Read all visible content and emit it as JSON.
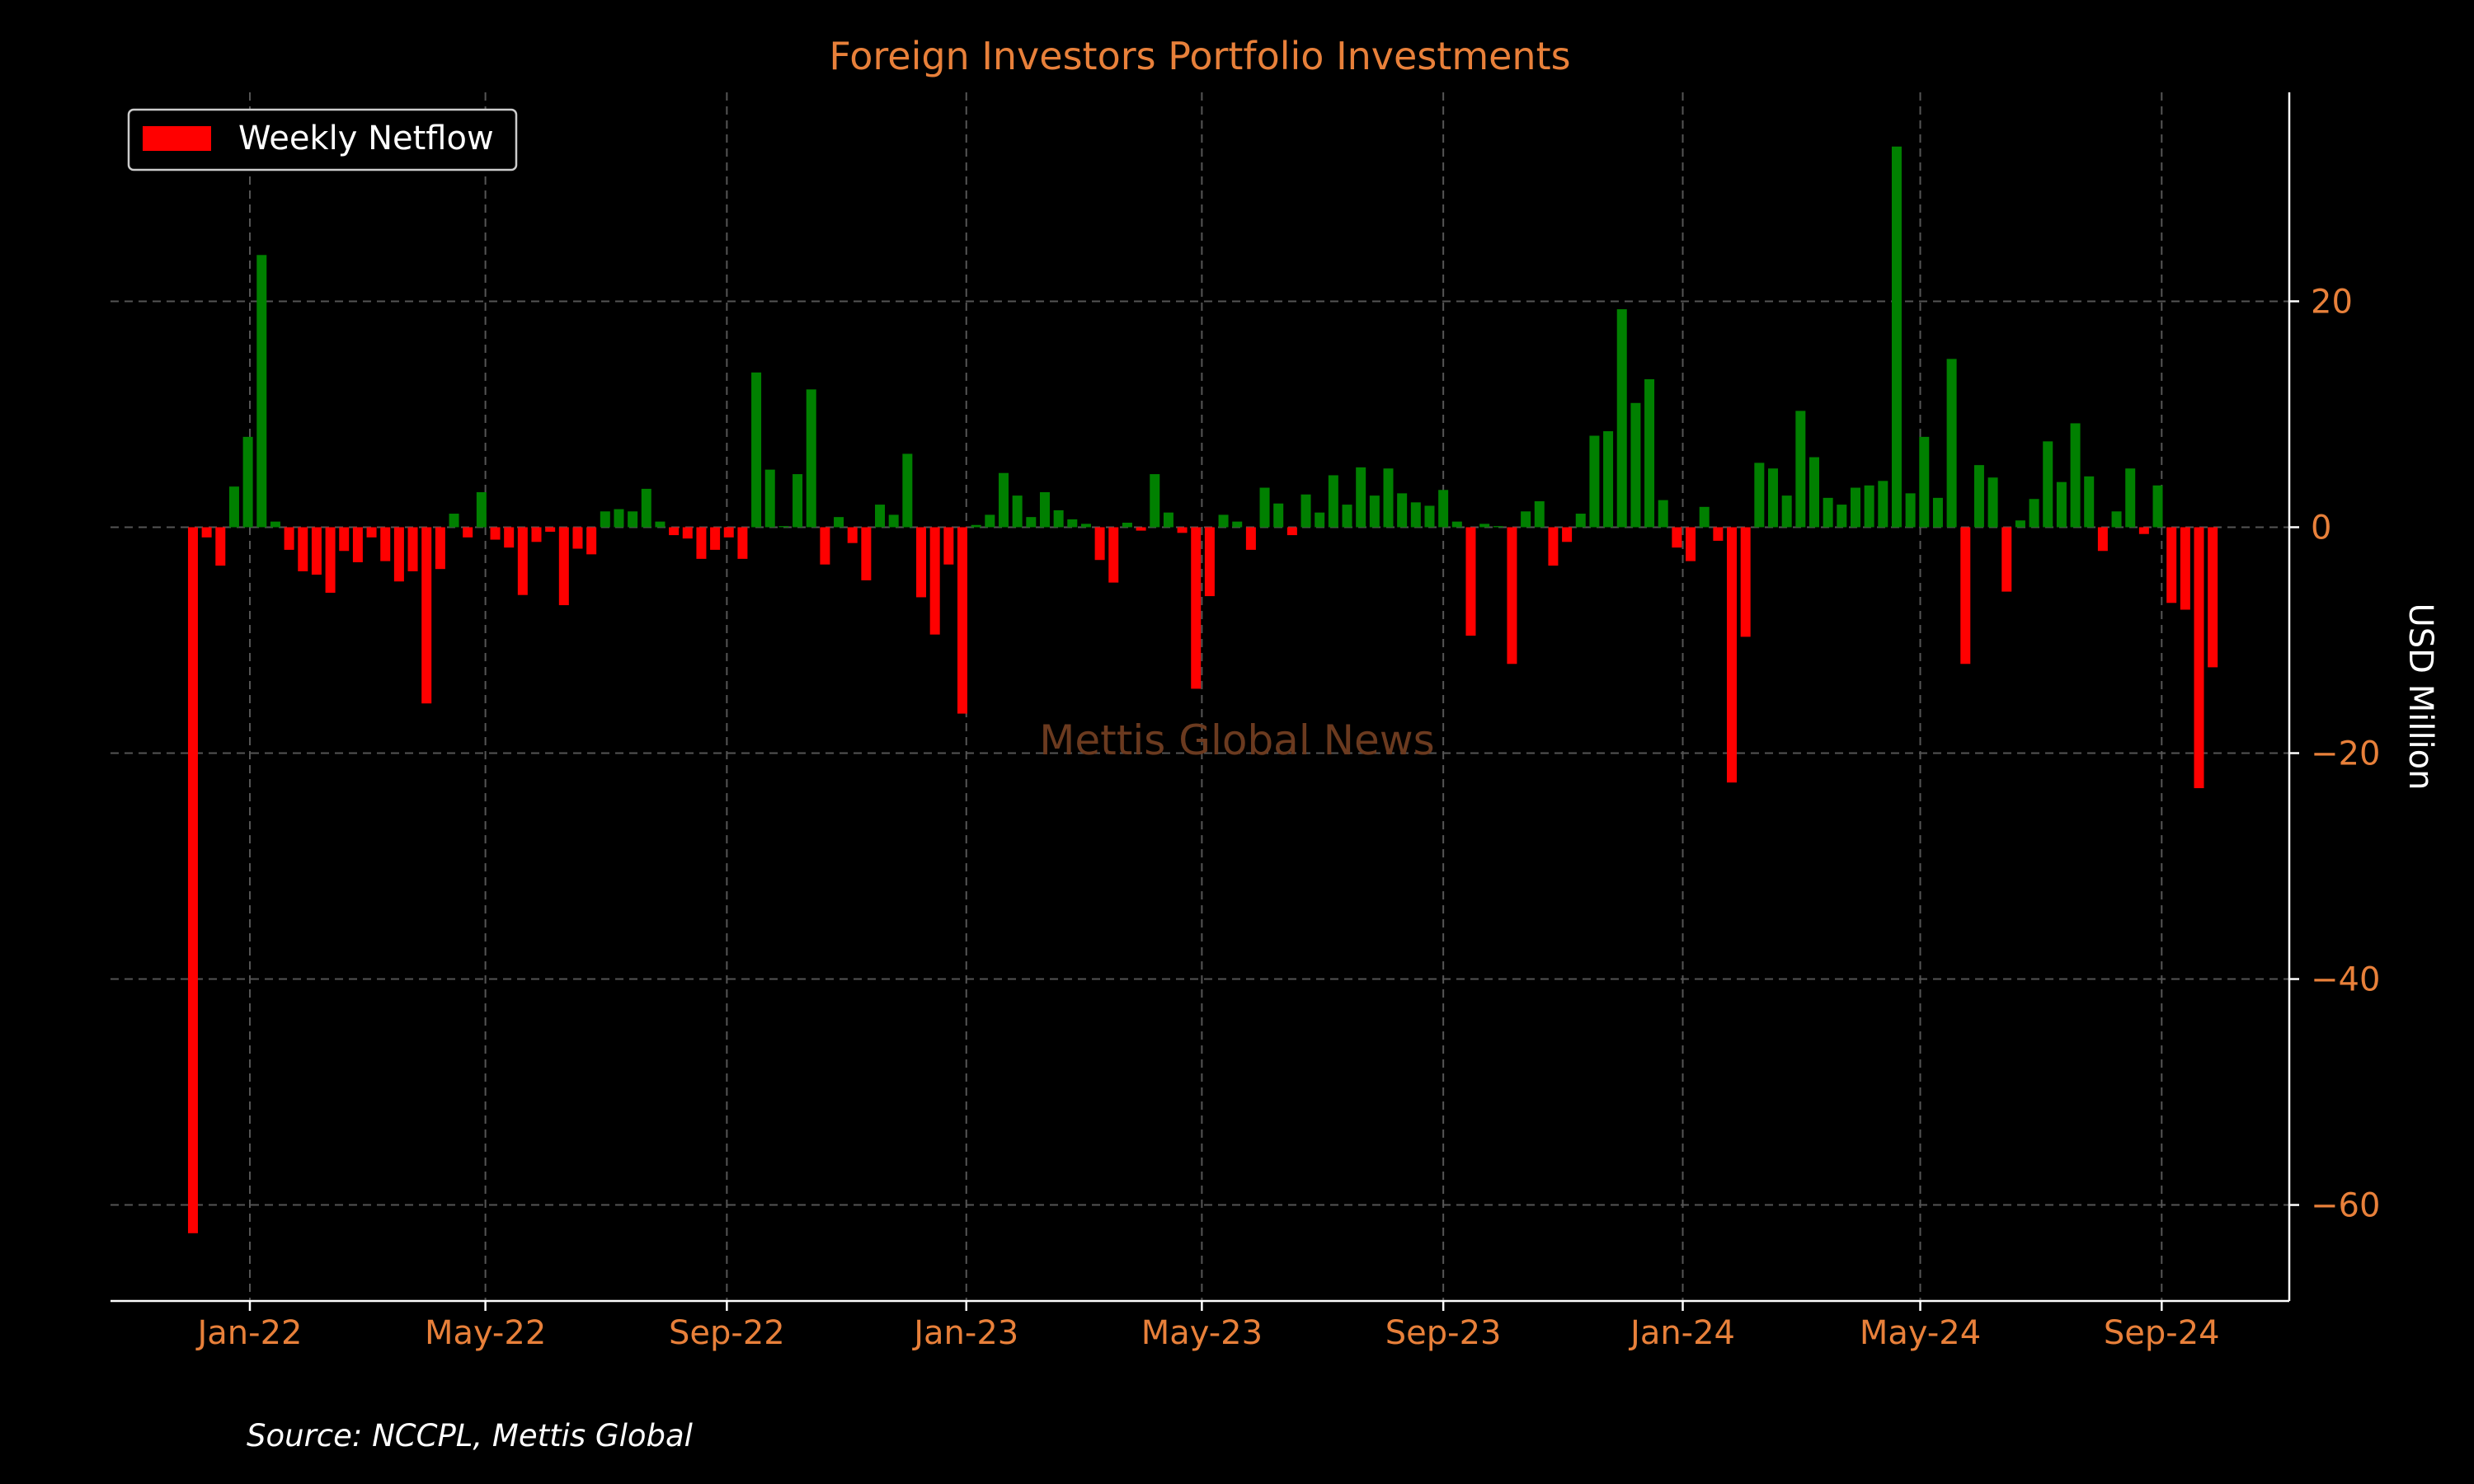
{
  "chart_data": {
    "type": "bar",
    "title": "Foreign Investors Portfolio Investments",
    "ylabel": "USD Million",
    "ylim": [
      -68.5,
      38.5
    ],
    "yticks": [
      -60,
      -40,
      -20,
      0,
      20
    ],
    "ytick_labels": [
      "−60",
      "−40",
      "−20",
      "0",
      "20"
    ],
    "xlim": [
      "2021-10-22",
      "2024-11-05"
    ],
    "xticks": [
      "2022-01-01",
      "2022-05-01",
      "2022-09-01",
      "2023-01-01",
      "2023-05-01",
      "2023-09-01",
      "2024-01-01",
      "2024-05-01",
      "2024-09-01"
    ],
    "xtick_labels": [
      "Jan-22",
      "May-22",
      "Sep-22",
      "Jan-23",
      "May-23",
      "Sep-23",
      "Jan-24",
      "May-24",
      "Sep-24"
    ],
    "grid": true,
    "legend": {
      "placement": "top-left",
      "entries": [
        {
          "label": "Weekly Netflow",
          "color": "#ff0000"
        }
      ]
    },
    "colors": {
      "positive": "#008000",
      "negative": "#ff0000",
      "title": "#e8803a",
      "ticks": "#e8803a",
      "axis": "#ffffff",
      "ylabel": "#ffffff",
      "watermark": "#6b3a1f"
    },
    "first_week": "2021-12-03",
    "bar_interval_days": 7,
    "values": [
      -62.5,
      -0.9,
      -3.4,
      3.6,
      8.0,
      24.1,
      0.5,
      -2.0,
      -3.9,
      -4.2,
      -5.8,
      -2.1,
      -3.1,
      -0.9,
      -3.0,
      -4.8,
      -3.9,
      -15.6,
      -3.7,
      1.2,
      -0.9,
      3.1,
      -1.1,
      -1.8,
      -6.0,
      -1.3,
      -0.4,
      -6.9,
      -1.9,
      -2.4,
      1.4,
      1.6,
      1.4,
      3.4,
      0.5,
      -0.7,
      -1.0,
      -2.8,
      -2.0,
      -0.9,
      -2.8,
      13.7,
      5.1,
      0.1,
      4.7,
      12.2,
      -3.3,
      0.9,
      -1.4,
      -4.7,
      2.0,
      1.1,
      6.5,
      -6.2,
      -9.5,
      -3.3,
      -16.5,
      0.2,
      1.1,
      4.8,
      2.8,
      0.9,
      3.1,
      1.5,
      0.7,
      0.3,
      -2.9,
      -4.9,
      0.4,
      -0.3,
      4.7,
      1.3,
      -0.5,
      -14.3,
      -6.1,
      1.1,
      0.5,
      -2.0,
      3.5,
      2.1,
      -0.7,
      2.9,
      1.3,
      4.6,
      2.0,
      5.3,
      2.8,
      5.2,
      3.0,
      2.2,
      1.9,
      3.3,
      0.5,
      -9.6,
      0.3,
      0.1,
      -12.1,
      1.4,
      2.3,
      -3.4,
      -1.3,
      1.2,
      8.1,
      8.5,
      19.3,
      11.0,
      13.1,
      2.4,
      -1.8,
      -3.0,
      1.8,
      -1.2,
      -22.6,
      -9.7,
      5.7,
      5.2,
      2.8,
      10.3,
      6.2,
      2.6,
      2.0,
      3.5,
      3.7,
      4.1,
      33.7,
      3.0,
      8.0,
      2.6,
      14.9,
      -12.1,
      5.5,
      4.4,
      -5.7,
      0.6,
      2.5,
      7.6,
      4.0,
      9.2,
      4.5,
      -2.1,
      1.4,
      5.2,
      -0.6,
      3.7,
      -6.7,
      -7.3,
      -23.1,
      -12.4
    ],
    "watermark": "Mettis Global News"
  },
  "source_note": "Source: NCCPL, Mettis Global"
}
